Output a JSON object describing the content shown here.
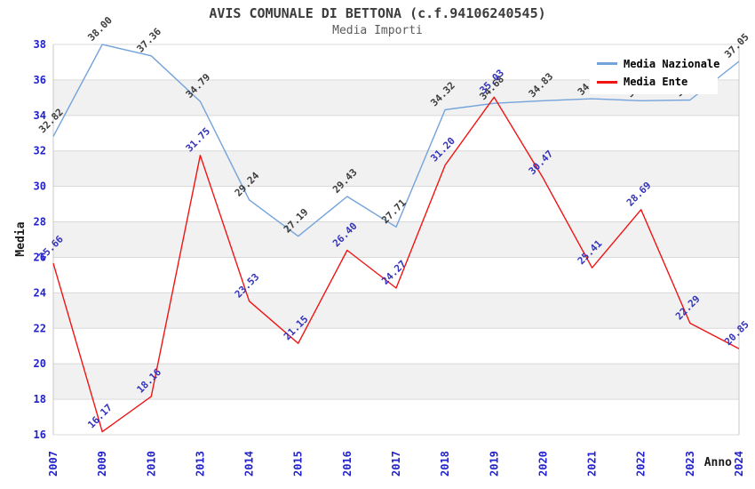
{
  "page": {
    "title": "AVIS COMUNALE DI BETTONA (c.f.94106240545)",
    "subtitle": "Media Importi"
  },
  "chart_data": {
    "type": "line",
    "title": "AVIS COMUNALE DI BETTONA (c.f.94106240545)",
    "subtitle": "Media Importi",
    "xlabel": "Anno",
    "ylabel": "Media",
    "categories": [
      "2007",
      "2009",
      "2010",
      "2013",
      "2014",
      "2015",
      "2016",
      "2017",
      "2018",
      "2019",
      "2020",
      "2021",
      "2022",
      "2023",
      "2024"
    ],
    "series": [
      {
        "name": "Media Nazionale",
        "color": "#74a3da",
        "label_color": "#3c3c3c",
        "values": [
          32.82,
          38.0,
          37.36,
          34.79,
          29.24,
          27.19,
          29.43,
          27.71,
          34.32,
          34.68,
          34.83,
          34.94,
          34.83,
          34.87,
          37.05
        ]
      },
      {
        "name": "Media Ente",
        "color": "#f01414",
        "label_color": "#3333bb",
        "values": [
          25.66,
          16.17,
          18.16,
          31.75,
          23.53,
          21.15,
          26.4,
          24.27,
          31.2,
          35.03,
          30.47,
          25.41,
          28.69,
          22.29,
          20.85
        ]
      }
    ],
    "ylim": [
      16,
      38
    ],
    "ytick_step": 2,
    "yticks": [
      16,
      18,
      20,
      22,
      24,
      26,
      28,
      30,
      32,
      34,
      36,
      38
    ],
    "grid": true,
    "legend_position": "top-right",
    "legend_labels": [
      "Media Nazionale",
      "Media Ente"
    ],
    "axis_tick_color": "#2222cc",
    "gridline_color": "#d9d9d9",
    "band_color": "#f1f1f1",
    "axis_title_color": "#1a1a1a",
    "note": "labels for Media Nazionale 2021-2023 are covered by the legend box"
  }
}
